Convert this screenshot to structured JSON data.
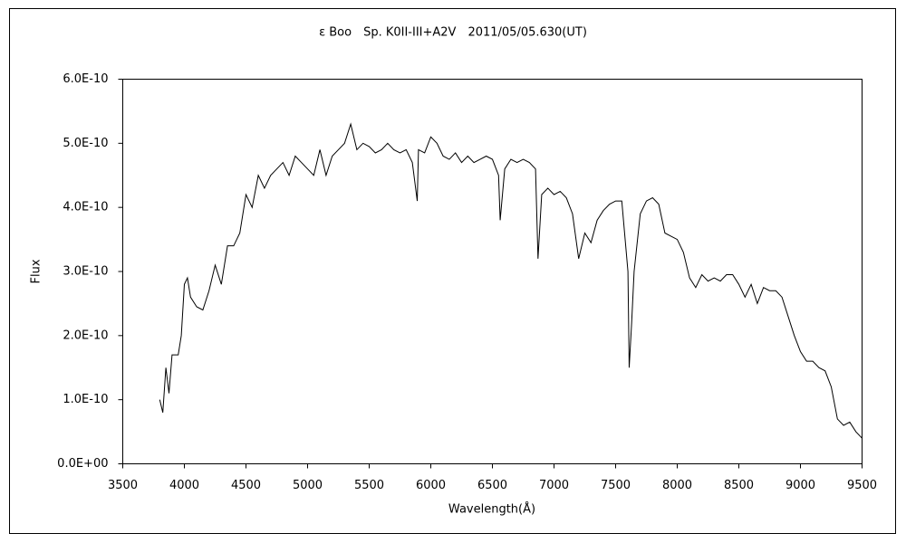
{
  "chart_data": {
    "type": "line",
    "title": "ε Boo　Sp. K0II-III+A2V　2011/05/05.630(UT)",
    "x_label": "Wavelength(Å)",
    "y_label": "Flux",
    "xlim": [
      3500,
      9500
    ],
    "xticks": [
      3500,
      4000,
      4500,
      5000,
      5500,
      6000,
      6500,
      7000,
      7500,
      8000,
      8500,
      9000,
      9500
    ],
    "ylim": [
      0,
      6e-10
    ],
    "yticks": [
      {
        "value": 0,
        "label": "0.0E+00"
      },
      {
        "value": 1e-10,
        "label": "1.0E-10"
      },
      {
        "value": 2e-10,
        "label": "2.0E-10"
      },
      {
        "value": 3e-10,
        "label": "3.0E-10"
      },
      {
        "value": 4e-10,
        "label": "4.0E-10"
      },
      {
        "value": 5e-10,
        "label": "5.0E-10"
      },
      {
        "value": 6e-10,
        "label": "6.0E-10"
      }
    ],
    "grid": false,
    "color": "#000000",
    "x": [
      3800,
      3825,
      3850,
      3875,
      3900,
      3950,
      3975,
      4000,
      4025,
      4050,
      4100,
      4150,
      4200,
      4250,
      4300,
      4350,
      4400,
      4450,
      4500,
      4550,
      4600,
      4650,
      4700,
      4750,
      4800,
      4850,
      4900,
      4950,
      5000,
      5050,
      5100,
      5150,
      5200,
      5250,
      5300,
      5350,
      5400,
      5450,
      5500,
      5550,
      5600,
      5650,
      5700,
      5750,
      5800,
      5850,
      5890,
      5900,
      5950,
      6000,
      6050,
      6100,
      6150,
      6200,
      6250,
      6300,
      6350,
      6400,
      6450,
      6500,
      6550,
      6563,
      6600,
      6650,
      6700,
      6750,
      6800,
      6850,
      6870,
      6900,
      6950,
      7000,
      7050,
      7100,
      7150,
      7200,
      7250,
      7300,
      7350,
      7400,
      7450,
      7500,
      7550,
      7600,
      7610,
      7630,
      7650,
      7700,
      7750,
      7800,
      7850,
      7900,
      7950,
      8000,
      8050,
      8100,
      8150,
      8200,
      8250,
      8300,
      8350,
      8400,
      8450,
      8500,
      8550,
      8600,
      8650,
      8700,
      8750,
      8800,
      8850,
      8900,
      8950,
      9000,
      9050,
      9100,
      9150,
      9200,
      9250,
      9300,
      9350,
      9400,
      9450,
      9500
    ],
    "values": [
      1e-10,
      8e-11,
      1.5e-10,
      1.1e-10,
      1.7e-10,
      1.7e-10,
      2e-10,
      2.8e-10,
      2.9e-10,
      2.6e-10,
      2.45e-10,
      2.4e-10,
      2.7e-10,
      3.1e-10,
      2.8e-10,
      3.4e-10,
      3.4e-10,
      3.6e-10,
      4.2e-10,
      4e-10,
      4.5e-10,
      4.3e-10,
      4.5e-10,
      4.6e-10,
      4.7e-10,
      4.5e-10,
      4.8e-10,
      4.7e-10,
      4.6e-10,
      4.5e-10,
      4.9e-10,
      4.5e-10,
      4.8e-10,
      4.9e-10,
      5e-10,
      5.3e-10,
      4.9e-10,
      5e-10,
      4.95e-10,
      4.85e-10,
      4.9e-10,
      5e-10,
      4.9e-10,
      4.85e-10,
      4.9e-10,
      4.7e-10,
      4.1e-10,
      4.9e-10,
      4.85e-10,
      5.1e-10,
      5e-10,
      4.8e-10,
      4.75e-10,
      4.85e-10,
      4.7e-10,
      4.8e-10,
      4.7e-10,
      4.75e-10,
      4.8e-10,
      4.75e-10,
      4.5e-10,
      3.8e-10,
      4.6e-10,
      4.75e-10,
      4.7e-10,
      4.75e-10,
      4.7e-10,
      4.6e-10,
      3.2e-10,
      4.2e-10,
      4.3e-10,
      4.2e-10,
      4.25e-10,
      4.15e-10,
      3.9e-10,
      3.2e-10,
      3.6e-10,
      3.45e-10,
      3.8e-10,
      3.95e-10,
      4.05e-10,
      4.1e-10,
      4.1e-10,
      3e-10,
      1.5e-10,
      2.2e-10,
      3e-10,
      3.9e-10,
      4.1e-10,
      4.15e-10,
      4.05e-10,
      3.6e-10,
      3.55e-10,
      3.5e-10,
      3.3e-10,
      2.9e-10,
      2.75e-10,
      2.95e-10,
      2.85e-10,
      2.9e-10,
      2.85e-10,
      2.95e-10,
      2.95e-10,
      2.8e-10,
      2.6e-10,
      2.8e-10,
      2.5e-10,
      2.75e-10,
      2.7e-10,
      2.7e-10,
      2.6e-10,
      2.3e-10,
      2e-10,
      1.75e-10,
      1.6e-10,
      1.6e-10,
      1.5e-10,
      1.45e-10,
      1.2e-10,
      7e-11,
      6e-11,
      6.5e-11,
      5e-11,
      4e-11
    ]
  }
}
